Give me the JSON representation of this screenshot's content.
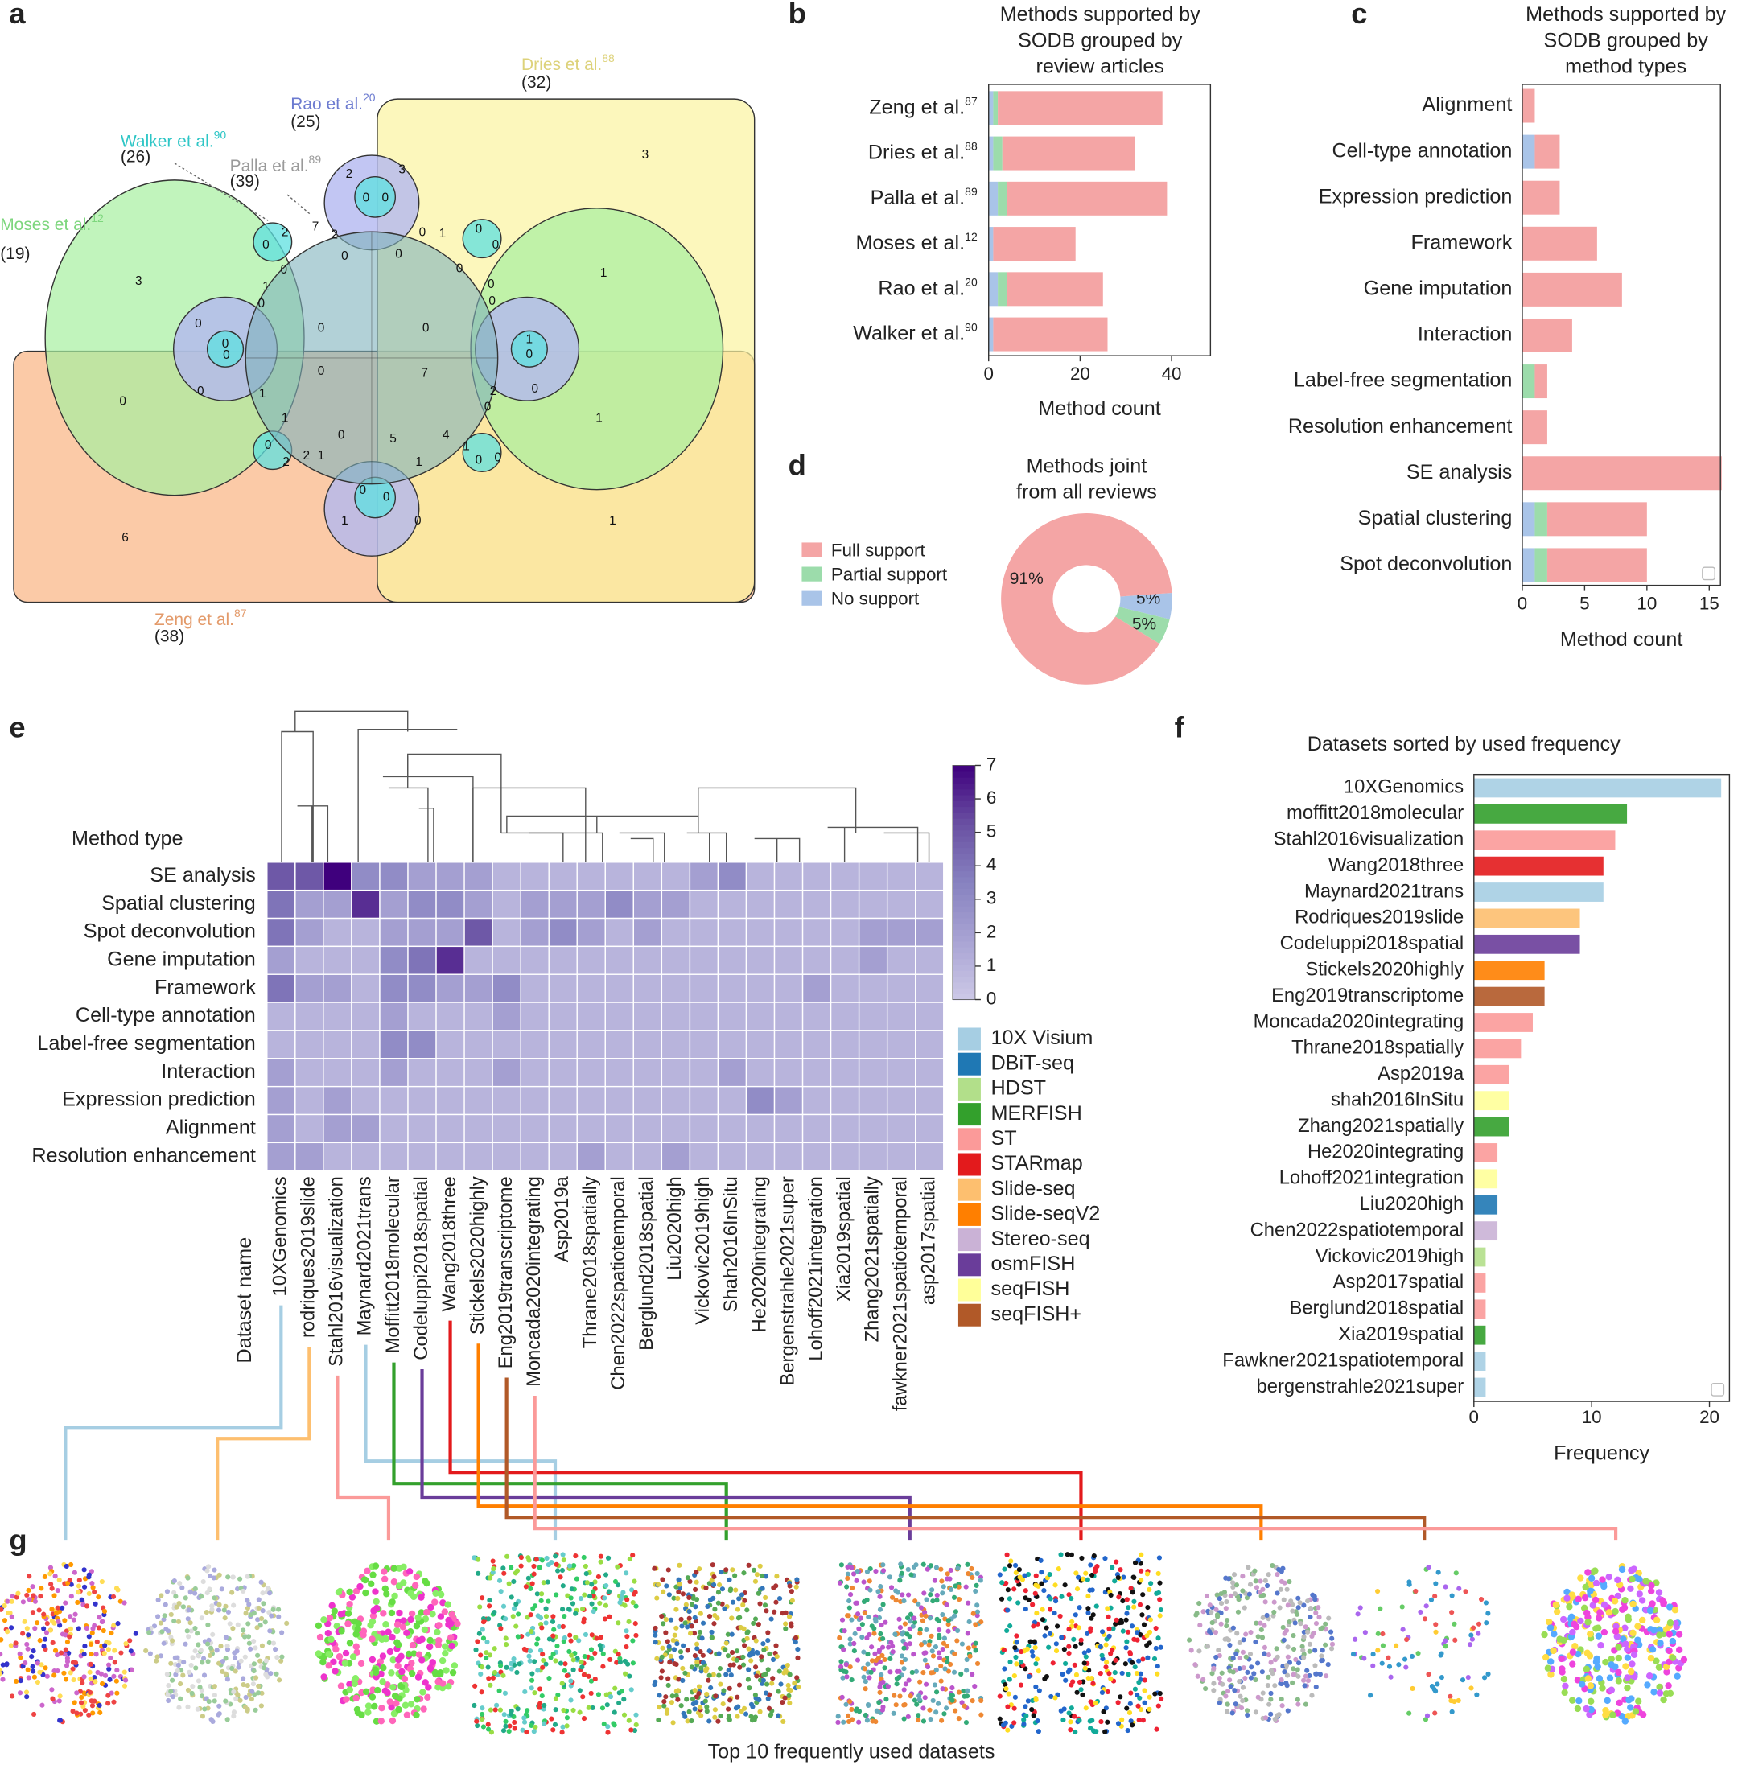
{
  "panel_labels": [
    "a",
    "b",
    "c",
    "d",
    "e",
    "f",
    "g"
  ],
  "venn": {
    "sets": [
      {
        "name": "Dries et al.",
        "ref": "88",
        "count": "(32)",
        "color": "#ddd27a"
      },
      {
        "name": "Rao  et al.",
        "ref": "20",
        "count": "(25)",
        "color": "#6c7bd0"
      },
      {
        "name": "Walker et al.",
        "ref": "90",
        "count": "(26)",
        "color": "#2ec6c6"
      },
      {
        "name": "Palla et al.",
        "ref": "89",
        "count": "(39)",
        "color": "#9a9a9a"
      },
      {
        "name": "Moses et al.",
        "ref": "12",
        "count": "(19)",
        "color": "#7dd67d"
      },
      {
        "name": "Zeng et al.",
        "ref": "87",
        "count": "(38)",
        "color": "#e39a6a"
      }
    ],
    "regions": [
      3,
      3,
      1,
      1,
      1,
      6,
      0,
      2,
      3,
      0,
      0,
      0,
      2,
      7,
      2,
      0,
      0,
      0,
      1,
      0,
      0,
      0,
      0,
      0,
      1,
      0,
      0,
      0,
      0,
      0,
      0,
      0,
      1,
      0,
      0,
      7,
      1,
      0,
      2,
      0,
      0,
      1,
      0,
      2,
      2,
      1,
      0,
      5,
      4,
      1,
      1,
      0,
      0,
      0,
      0,
      1,
      0
    ]
  },
  "chart_data": [
    {
      "type": "bar",
      "orientation": "horizontal",
      "stacked": true,
      "title": [
        "Methods supported by",
        "SODB grouped by",
        "review articles"
      ],
      "categories": [
        "Zeng et al.",
        "Dries et al.",
        "Palla et al.",
        "Moses et al.",
        "Rao et al.",
        "Walker et al."
      ],
      "category_refs": [
        "87",
        "88",
        "89",
        "12",
        "20",
        "90"
      ],
      "series": [
        {
          "color": "#a9c4e8",
          "values": [
            1,
            1,
            2,
            1,
            2,
            1
          ]
        },
        {
          "color": "#9cdcab",
          "values": [
            1,
            2,
            2,
            0,
            2,
            0
          ]
        },
        {
          "color": "#f4a5a5",
          "values": [
            36,
            29,
            35,
            18,
            21,
            25
          ]
        }
      ],
      "xlabel": "Method count",
      "xlim": [
        0,
        48.5
      ],
      "xticks": [
        0,
        20,
        40
      ]
    },
    {
      "type": "bar",
      "orientation": "horizontal",
      "stacked": true,
      "title": [
        "Methods supported by",
        "SODB grouped by",
        "method types"
      ],
      "categories": [
        "Alignment",
        "Cell-type annotation",
        "Expression prediction",
        "Framework",
        "Gene imputation",
        "Interaction",
        "Label-free segmentation",
        "Resolution enhancement",
        "SE analysis",
        "Spatial clustering",
        "Spot deconvolution"
      ],
      "series": [
        {
          "color": "#a9c4e8",
          "values": [
            0,
            1,
            0,
            0,
            0,
            0,
            0,
            0,
            0,
            1,
            1
          ]
        },
        {
          "color": "#9cdcab",
          "values": [
            0,
            0,
            0,
            0,
            0,
            0,
            1,
            0,
            0,
            1,
            1
          ]
        },
        {
          "color": "#f4a5a5",
          "values": [
            1,
            2,
            3,
            6,
            8,
            4,
            1,
            2,
            16,
            8,
            8
          ]
        }
      ],
      "xlabel": "Method count",
      "xlim": [
        0,
        15.9
      ],
      "xticks": [
        0,
        5,
        10,
        15
      ]
    },
    {
      "type": "pie",
      "donut": true,
      "title": [
        "Methods joint",
        "from all reviews"
      ],
      "categories": [
        "Full support",
        "Partial support",
        "No support"
      ],
      "values": [
        91,
        5,
        5
      ],
      "value_labels": [
        "91%",
        "5%",
        "5%"
      ],
      "colors": [
        "#f4a5a5",
        "#9cdcab",
        "#a9c4e8"
      ]
    },
    {
      "type": "heatmap",
      "ylabel": "Method type",
      "xlabel": "Dataset name",
      "rows": [
        "SE analysis",
        "Spatial clustering",
        "Spot deconvolution",
        "Gene imputation",
        "Framework",
        "Cell-type annotation",
        "Label-free segmentation",
        "Interaction",
        "Expression prediction",
        "Alignment",
        "Resolution enhancement"
      ],
      "columns": [
        "10XGenomics",
        "rodriques2019slide",
        "Stahl2016visualization",
        "Maynard2021trans",
        "Moffitt2018molecular",
        "Codeluppi2018spatial",
        "Wang2018three",
        "Stickels2020highly",
        "Eng2019transcriptome",
        "Moncada2020integrating",
        "Asp2019a",
        "Thrane2018spatially",
        "Chen2022spatiotemporal",
        "Berglund2018spatial",
        "Liu2020high",
        "Vickovic2019high",
        "Shah2016InSitu",
        "He2020integrating",
        "Bergenstrahle2021super",
        "Lohoff2021integration",
        "Xia2019spatial",
        "Zhang2021spatially",
        "fawkner2021spatiotemporal",
        "asp2017spatial"
      ],
      "column_colors": [
        "#a6cee3",
        "#fdbf6f",
        "#fb9a99",
        "#a6cee3",
        "#33a02c",
        "#6a3d9a",
        "#e31a1c",
        "#ff7f00",
        "#b15928",
        "#fb9a99",
        "#fb9a99",
        "#fb9a99",
        "#cab2d6",
        "#fb9a99",
        "#1f78b4",
        "#b2df8a",
        "#ffff99",
        "#fb9a99",
        "#a6cee3",
        "#ffff99",
        "#33a02c",
        "#33a02c",
        "#a6cee3",
        "#fb9a99"
      ],
      "values": [
        [
          5,
          5,
          7,
          3,
          3,
          2,
          2,
          2,
          1,
          1,
          1,
          1,
          1,
          1,
          1,
          2,
          3,
          1,
          1,
          1,
          1,
          1,
          1,
          1
        ],
        [
          4,
          2,
          2,
          6,
          2,
          3,
          3,
          2,
          1,
          2,
          2,
          2,
          3,
          2,
          2,
          1,
          1,
          1,
          1,
          1,
          1,
          1,
          1,
          1
        ],
        [
          4,
          2,
          1,
          1,
          2,
          2,
          2,
          5,
          1,
          2,
          3,
          2,
          1,
          2,
          1,
          1,
          1,
          1,
          1,
          1,
          1,
          2,
          2,
          2
        ],
        [
          2,
          1,
          1,
          1,
          3,
          4,
          6,
          1,
          1,
          1,
          1,
          1,
          1,
          1,
          1,
          1,
          1,
          1,
          1,
          1,
          1,
          2,
          1,
          1
        ],
        [
          4,
          2,
          2,
          1,
          3,
          3,
          2,
          2,
          3,
          1,
          1,
          1,
          1,
          1,
          1,
          1,
          1,
          1,
          1,
          2,
          1,
          1,
          1,
          1
        ],
        [
          1,
          1,
          1,
          1,
          2,
          1,
          1,
          1,
          2,
          1,
          1,
          1,
          1,
          1,
          1,
          1,
          1,
          1,
          1,
          1,
          1,
          1,
          1,
          1
        ],
        [
          1,
          1,
          1,
          1,
          3,
          3,
          1,
          1,
          1,
          1,
          1,
          1,
          1,
          1,
          1,
          1,
          1,
          1,
          1,
          1,
          1,
          1,
          1,
          1
        ],
        [
          2,
          1,
          1,
          1,
          2,
          1,
          1,
          1,
          2,
          1,
          1,
          1,
          1,
          1,
          1,
          1,
          2,
          1,
          1,
          1,
          1,
          1,
          1,
          1
        ],
        [
          2,
          1,
          2,
          1,
          1,
          1,
          1,
          1,
          1,
          1,
          1,
          1,
          1,
          1,
          1,
          1,
          1,
          3,
          2,
          1,
          1,
          1,
          1,
          1
        ],
        [
          2,
          1,
          2,
          2,
          1,
          1,
          1,
          1,
          1,
          1,
          1,
          1,
          1,
          1,
          1,
          1,
          1,
          1,
          1,
          1,
          1,
          1,
          1,
          1
        ],
        [
          2,
          2,
          1,
          1,
          1,
          1,
          1,
          1,
          1,
          1,
          1,
          2,
          1,
          1,
          2,
          1,
          1,
          1,
          1,
          1,
          1,
          1,
          1,
          1
        ]
      ],
      "colorbar": {
        "lim": [
          0,
          7
        ],
        "ticks": [
          0,
          1,
          2,
          3,
          4,
          5,
          6,
          7
        ],
        "colormap": "Purples"
      },
      "legend": {
        "names": [
          "10X Visium",
          "DBiT-seq",
          "HDST",
          "MERFISH",
          "ST",
          "STARmap",
          "Slide-seq",
          "Slide-seqV2",
          "Stereo-seq",
          "osmFISH",
          "seqFISH",
          "seqFISH+"
        ],
        "colors": [
          "#a6cee3",
          "#1f78b4",
          "#b2df8a",
          "#33a02c",
          "#fb9a99",
          "#e31a1c",
          "#fdbf6f",
          "#ff7f00",
          "#cab2d6",
          "#6a3d9a",
          "#ffff99",
          "#b15928"
        ]
      }
    },
    {
      "type": "bar",
      "orientation": "horizontal",
      "title": "Datasets sorted by used frequency",
      "categories": [
        "10XGenomics",
        "moffitt2018molecular",
        "Stahl2016visualization",
        "Wang2018three",
        "Maynard2021trans",
        "Rodriques2019slide",
        "Codeluppi2018spatial",
        "Stickels2020highly",
        "Eng2019transcriptome",
        "Moncada2020integrating",
        "Thrane2018spatially",
        "Asp2019a",
        "shah2016InSitu",
        "Zhang2021spatially",
        "He2020integrating",
        "Lohoff2021integration",
        "Liu2020high",
        "Chen2022spatiotemporal",
        "Vickovic2019high",
        "Asp2017spatial",
        "Berglund2018spatial",
        "Xia2019spatial",
        "Fawkner2021spatiotemporal",
        "bergenstrahle2021super"
      ],
      "values": [
        21,
        13,
        12,
        11,
        11,
        9,
        9,
        6,
        6,
        5,
        4,
        3,
        3,
        3,
        2,
        2,
        2,
        2,
        1,
        1,
        1,
        1,
        1,
        1
      ],
      "colors": [
        "#a6cee3",
        "#33a02c",
        "#fb9a99",
        "#e31a1c",
        "#a6cee3",
        "#fdbf6f",
        "#6a3d9a",
        "#ff7f00",
        "#b15928",
        "#fb9a99",
        "#fb9a99",
        "#fb9a99",
        "#ffff99",
        "#33a02c",
        "#fb9a99",
        "#ffff99",
        "#1f78b4",
        "#cab2d6",
        "#b2df8a",
        "#fb9a99",
        "#fb9a99",
        "#33a02c",
        "#a6cee3",
        "#a6cee3"
      ],
      "xlabel": "Frequency",
      "xlim": [
        0,
        21.7
      ],
      "xticks": [
        0,
        10,
        20
      ]
    }
  ],
  "gallery": {
    "caption": "Top 10 frequently used datasets"
  }
}
